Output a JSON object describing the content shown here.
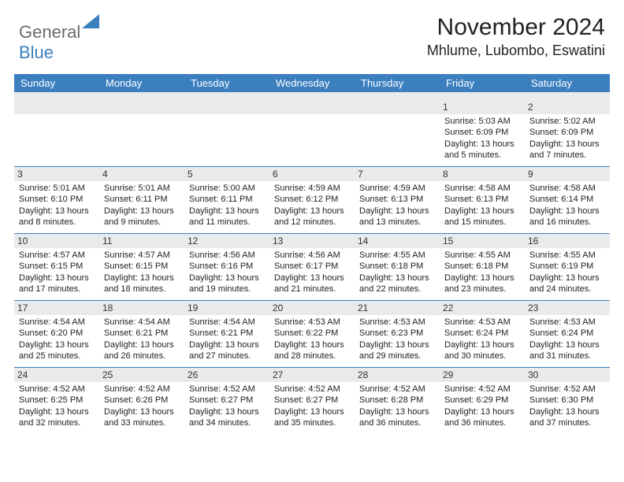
{
  "logo": {
    "text_gray": "General",
    "text_blue": "Blue"
  },
  "title": {
    "month": "November 2024",
    "location": "Mhlume, Lubombo, Eswatini"
  },
  "colors": {
    "header_blue": "#3b7fbf",
    "band_gray": "#e9eaec",
    "text": "#222222",
    "logo_gray": "#6b6b6b"
  },
  "days_of_week": [
    "Sunday",
    "Monday",
    "Tuesday",
    "Wednesday",
    "Thursday",
    "Friday",
    "Saturday"
  ],
  "weeks": [
    [
      {
        "n": "",
        "sr": "",
        "ss": "",
        "dl": ""
      },
      {
        "n": "",
        "sr": "",
        "ss": "",
        "dl": ""
      },
      {
        "n": "",
        "sr": "",
        "ss": "",
        "dl": ""
      },
      {
        "n": "",
        "sr": "",
        "ss": "",
        "dl": ""
      },
      {
        "n": "",
        "sr": "",
        "ss": "",
        "dl": ""
      },
      {
        "n": "1",
        "sr": "Sunrise: 5:03 AM",
        "ss": "Sunset: 6:09 PM",
        "dl": "Daylight: 13 hours and 5 minutes."
      },
      {
        "n": "2",
        "sr": "Sunrise: 5:02 AM",
        "ss": "Sunset: 6:09 PM",
        "dl": "Daylight: 13 hours and 7 minutes."
      }
    ],
    [
      {
        "n": "3",
        "sr": "Sunrise: 5:01 AM",
        "ss": "Sunset: 6:10 PM",
        "dl": "Daylight: 13 hours and 8 minutes."
      },
      {
        "n": "4",
        "sr": "Sunrise: 5:01 AM",
        "ss": "Sunset: 6:11 PM",
        "dl": "Daylight: 13 hours and 9 minutes."
      },
      {
        "n": "5",
        "sr": "Sunrise: 5:00 AM",
        "ss": "Sunset: 6:11 PM",
        "dl": "Daylight: 13 hours and 11 minutes."
      },
      {
        "n": "6",
        "sr": "Sunrise: 4:59 AM",
        "ss": "Sunset: 6:12 PM",
        "dl": "Daylight: 13 hours and 12 minutes."
      },
      {
        "n": "7",
        "sr": "Sunrise: 4:59 AM",
        "ss": "Sunset: 6:13 PM",
        "dl": "Daylight: 13 hours and 13 minutes."
      },
      {
        "n": "8",
        "sr": "Sunrise: 4:58 AM",
        "ss": "Sunset: 6:13 PM",
        "dl": "Daylight: 13 hours and 15 minutes."
      },
      {
        "n": "9",
        "sr": "Sunrise: 4:58 AM",
        "ss": "Sunset: 6:14 PM",
        "dl": "Daylight: 13 hours and 16 minutes."
      }
    ],
    [
      {
        "n": "10",
        "sr": "Sunrise: 4:57 AM",
        "ss": "Sunset: 6:15 PM",
        "dl": "Daylight: 13 hours and 17 minutes."
      },
      {
        "n": "11",
        "sr": "Sunrise: 4:57 AM",
        "ss": "Sunset: 6:15 PM",
        "dl": "Daylight: 13 hours and 18 minutes."
      },
      {
        "n": "12",
        "sr": "Sunrise: 4:56 AM",
        "ss": "Sunset: 6:16 PM",
        "dl": "Daylight: 13 hours and 19 minutes."
      },
      {
        "n": "13",
        "sr": "Sunrise: 4:56 AM",
        "ss": "Sunset: 6:17 PM",
        "dl": "Daylight: 13 hours and 21 minutes."
      },
      {
        "n": "14",
        "sr": "Sunrise: 4:55 AM",
        "ss": "Sunset: 6:18 PM",
        "dl": "Daylight: 13 hours and 22 minutes."
      },
      {
        "n": "15",
        "sr": "Sunrise: 4:55 AM",
        "ss": "Sunset: 6:18 PM",
        "dl": "Daylight: 13 hours and 23 minutes."
      },
      {
        "n": "16",
        "sr": "Sunrise: 4:55 AM",
        "ss": "Sunset: 6:19 PM",
        "dl": "Daylight: 13 hours and 24 minutes."
      }
    ],
    [
      {
        "n": "17",
        "sr": "Sunrise: 4:54 AM",
        "ss": "Sunset: 6:20 PM",
        "dl": "Daylight: 13 hours and 25 minutes."
      },
      {
        "n": "18",
        "sr": "Sunrise: 4:54 AM",
        "ss": "Sunset: 6:21 PM",
        "dl": "Daylight: 13 hours and 26 minutes."
      },
      {
        "n": "19",
        "sr": "Sunrise: 4:54 AM",
        "ss": "Sunset: 6:21 PM",
        "dl": "Daylight: 13 hours and 27 minutes."
      },
      {
        "n": "20",
        "sr": "Sunrise: 4:53 AM",
        "ss": "Sunset: 6:22 PM",
        "dl": "Daylight: 13 hours and 28 minutes."
      },
      {
        "n": "21",
        "sr": "Sunrise: 4:53 AM",
        "ss": "Sunset: 6:23 PM",
        "dl": "Daylight: 13 hours and 29 minutes."
      },
      {
        "n": "22",
        "sr": "Sunrise: 4:53 AM",
        "ss": "Sunset: 6:24 PM",
        "dl": "Daylight: 13 hours and 30 minutes."
      },
      {
        "n": "23",
        "sr": "Sunrise: 4:53 AM",
        "ss": "Sunset: 6:24 PM",
        "dl": "Daylight: 13 hours and 31 minutes."
      }
    ],
    [
      {
        "n": "24",
        "sr": "Sunrise: 4:52 AM",
        "ss": "Sunset: 6:25 PM",
        "dl": "Daylight: 13 hours and 32 minutes."
      },
      {
        "n": "25",
        "sr": "Sunrise: 4:52 AM",
        "ss": "Sunset: 6:26 PM",
        "dl": "Daylight: 13 hours and 33 minutes."
      },
      {
        "n": "26",
        "sr": "Sunrise: 4:52 AM",
        "ss": "Sunset: 6:27 PM",
        "dl": "Daylight: 13 hours and 34 minutes."
      },
      {
        "n": "27",
        "sr": "Sunrise: 4:52 AM",
        "ss": "Sunset: 6:27 PM",
        "dl": "Daylight: 13 hours and 35 minutes."
      },
      {
        "n": "28",
        "sr": "Sunrise: 4:52 AM",
        "ss": "Sunset: 6:28 PM",
        "dl": "Daylight: 13 hours and 36 minutes."
      },
      {
        "n": "29",
        "sr": "Sunrise: 4:52 AM",
        "ss": "Sunset: 6:29 PM",
        "dl": "Daylight: 13 hours and 36 minutes."
      },
      {
        "n": "30",
        "sr": "Sunrise: 4:52 AM",
        "ss": "Sunset: 6:30 PM",
        "dl": "Daylight: 13 hours and 37 minutes."
      }
    ]
  ]
}
